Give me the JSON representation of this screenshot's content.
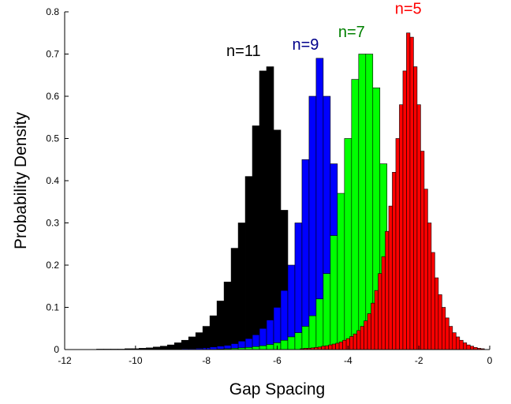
{
  "chart_data": {
    "type": "bar",
    "title": "",
    "xlabel": "Gap Spacing",
    "ylabel": "Probability Density",
    "xlim": [
      -12,
      0
    ],
    "ylim": [
      0,
      0.8
    ],
    "x_ticks": [
      "-12",
      "-10",
      "-8",
      "-6",
      "-4",
      "-2",
      "0"
    ],
    "x_tick_values": [
      -12,
      -10,
      -8,
      -6,
      -4,
      -2,
      0
    ],
    "y_ticks": [
      "0",
      "0.1",
      "0.2",
      "0.3",
      "0.4",
      "0.5",
      "0.6",
      "0.7",
      "0.8"
    ],
    "y_tick_values": [
      0,
      0.1,
      0.2,
      0.3,
      0.4,
      0.5,
      0.6,
      0.7,
      0.8
    ],
    "grid": false,
    "legend": "none",
    "series": [
      {
        "name": "n=11",
        "color": "#000000",
        "bin_width": 0.2,
        "x": [
          -11.0,
          -10.8,
          -10.6,
          -10.4,
          -10.2,
          -10.0,
          -9.8,
          -9.6,
          -9.4,
          -9.2,
          -9.0,
          -8.8,
          -8.6,
          -8.4,
          -8.2,
          -8.0,
          -7.8,
          -7.6,
          -7.4,
          -7.2,
          -7.0,
          -6.8,
          -6.6,
          -6.4,
          -6.2,
          -6.0,
          -5.8,
          -5.6,
          -5.4,
          -5.2,
          -5.0,
          -4.8
        ],
        "values": [
          0.001,
          0.001,
          0.001,
          0.001,
          0.002,
          0.002,
          0.003,
          0.004,
          0.006,
          0.008,
          0.011,
          0.016,
          0.022,
          0.03,
          0.04,
          0.055,
          0.08,
          0.115,
          0.16,
          0.24,
          0.3,
          0.41,
          0.53,
          0.66,
          0.67,
          0.52,
          0.33,
          0.18,
          0.08,
          0.03,
          0.01,
          0.003
        ]
      },
      {
        "name": "n=9",
        "color": "#0000ff",
        "bin_width": 0.2,
        "x": [
          -9.0,
          -8.8,
          -8.6,
          -8.4,
          -8.2,
          -8.0,
          -7.8,
          -7.6,
          -7.4,
          -7.2,
          -7.0,
          -6.8,
          -6.6,
          -6.4,
          -6.2,
          -6.0,
          -5.8,
          -5.6,
          -5.4,
          -5.2,
          -5.0,
          -4.8,
          -4.6,
          -4.4,
          -4.2,
          -4.0,
          -3.8,
          -3.6,
          -3.4
        ],
        "values": [
          0.001,
          0.001,
          0.002,
          0.002,
          0.003,
          0.004,
          0.006,
          0.008,
          0.01,
          0.014,
          0.02,
          0.026,
          0.035,
          0.05,
          0.07,
          0.1,
          0.14,
          0.2,
          0.3,
          0.45,
          0.6,
          0.69,
          0.6,
          0.44,
          0.24,
          0.12,
          0.05,
          0.02,
          0.005
        ]
      },
      {
        "name": "n=7",
        "color": "#00ff00",
        "bin_width": 0.2,
        "x": [
          -7.6,
          -7.4,
          -7.2,
          -7.0,
          -6.8,
          -6.6,
          -6.4,
          -6.2,
          -6.0,
          -5.8,
          -5.6,
          -5.4,
          -5.2,
          -5.0,
          -4.8,
          -4.6,
          -4.4,
          -4.2,
          -4.0,
          -3.8,
          -3.6,
          -3.4,
          -3.2,
          -3.0,
          -2.8,
          -2.6,
          -2.4,
          -2.2,
          -2.0
        ],
        "values": [
          0.001,
          0.002,
          0.003,
          0.004,
          0.005,
          0.007,
          0.009,
          0.012,
          0.016,
          0.022,
          0.03,
          0.04,
          0.055,
          0.08,
          0.12,
          0.18,
          0.27,
          0.37,
          0.5,
          0.64,
          0.7,
          0.7,
          0.62,
          0.44,
          0.26,
          0.13,
          0.05,
          0.02,
          0.006
        ]
      },
      {
        "name": "n=5",
        "color": "#ff0000",
        "bin_width": 0.1,
        "x": [
          -5.3,
          -5.2,
          -5.1,
          -5.0,
          -4.9,
          -4.8,
          -4.7,
          -4.6,
          -4.5,
          -4.4,
          -4.3,
          -4.2,
          -4.1,
          -4.0,
          -3.9,
          -3.8,
          -3.7,
          -3.6,
          -3.5,
          -3.4,
          -3.3,
          -3.2,
          -3.1,
          -3.0,
          -2.9,
          -2.8,
          -2.7,
          -2.6,
          -2.5,
          -2.4,
          -2.3,
          -2.2,
          -2.1,
          -2.0,
          -1.9,
          -1.8,
          -1.7,
          -1.6,
          -1.5,
          -1.4,
          -1.3,
          -1.2,
          -1.1,
          -1.0,
          -0.9,
          -0.8,
          -0.7,
          -0.6,
          -0.5,
          -0.4,
          -0.3,
          -0.2
        ],
        "values": [
          0.002,
          0.003,
          0.003,
          0.004,
          0.005,
          0.006,
          0.008,
          0.009,
          0.011,
          0.013,
          0.015,
          0.018,
          0.022,
          0.026,
          0.031,
          0.037,
          0.045,
          0.055,
          0.068,
          0.085,
          0.11,
          0.14,
          0.18,
          0.22,
          0.28,
          0.34,
          0.42,
          0.5,
          0.58,
          0.66,
          0.75,
          0.74,
          0.67,
          0.58,
          0.47,
          0.38,
          0.3,
          0.23,
          0.17,
          0.13,
          0.1,
          0.075,
          0.055,
          0.04,
          0.03,
          0.022,
          0.016,
          0.011,
          0.008,
          0.005,
          0.003,
          0.002
        ]
      }
    ],
    "annotations": [
      {
        "text": "n=11",
        "color": "#000000",
        "x": -6.95,
        "y": 0.695
      },
      {
        "text": "n=9",
        "color": "#00008b",
        "x": -5.2,
        "y": 0.71
      },
      {
        "text": "n=7",
        "color": "#008000",
        "x": -3.9,
        "y": 0.74
      },
      {
        "text": "n=5",
        "color": "#ff0000",
        "x": -2.3,
        "y": 0.795
      }
    ]
  }
}
